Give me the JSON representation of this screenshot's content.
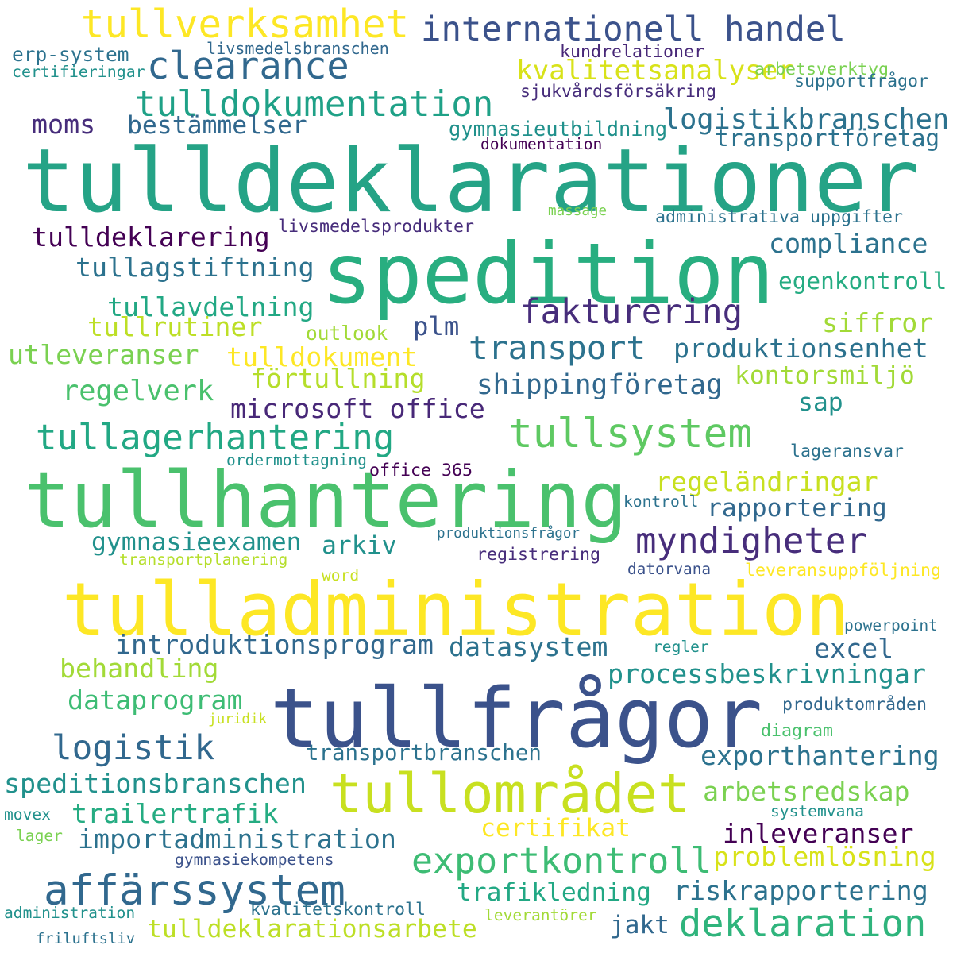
{
  "colors": {
    "dark_purple": "#440154",
    "indigo": "#3b528b",
    "blue": "#31688e",
    "teal": "#21918c",
    "green": "#2a9d70",
    "emerald": "#28ae80",
    "lime_green": "#5ec962",
    "yellow_green": "#b5de2b",
    "yellow": "#fde725"
  },
  "words": [
    {
      "text": "tulldeklarationer",
      "color": "#25a386"
    },
    {
      "text": "spedition",
      "color": "#28ae80"
    },
    {
      "text": "tullhantering",
      "color": "#4ac16d"
    },
    {
      "text": "tulladministration",
      "color": "#fde725"
    },
    {
      "text": "tullfrågor",
      "color": "#3b528b"
    },
    {
      "text": "tullområdet",
      "color": "#c8e020"
    },
    {
      "text": "affärssystem",
      "color": "#31688e"
    },
    {
      "text": "tullsystem",
      "color": "#5ec962"
    },
    {
      "text": "tullverksamhet",
      "color": "#fde725"
    },
    {
      "text": "internationell handel",
      "color": "#3b528b"
    },
    {
      "text": "clearance",
      "color": "#31688e"
    },
    {
      "text": "tulldokumentation",
      "color": "#1fa187"
    },
    {
      "text": "kvalitetsanalyser",
      "color": "#d8e219"
    },
    {
      "text": "logistikbranschen",
      "color": "#2c728e"
    },
    {
      "text": "moms",
      "color": "#472d7b"
    },
    {
      "text": "bestämmelser",
      "color": "#31688e"
    },
    {
      "text": "gymnasieutbildning",
      "color": "#21918c"
    },
    {
      "text": "transportföretag",
      "color": "#2c728e"
    },
    {
      "text": "deklaration",
      "color": "#2fb47c"
    },
    {
      "text": "exportkontroll",
      "color": "#3dbc74"
    },
    {
      "text": "fakturering",
      "color": "#472d7b"
    },
    {
      "text": "tullagerhantering",
      "color": "#22a884"
    },
    {
      "text": "myndigheter",
      "color": "#472d7b"
    },
    {
      "text": "transport",
      "color": "#2c728e"
    },
    {
      "text": "logistik",
      "color": "#31688e"
    },
    {
      "text": "tulldeklarering",
      "color": "#440154"
    },
    {
      "text": "compliance",
      "color": "#2c728e"
    },
    {
      "text": "tullagstiftning",
      "color": "#2c728e"
    },
    {
      "text": "tullavdelning",
      "color": "#22a884"
    },
    {
      "text": "tullrutiner",
      "color": "#bddf26"
    },
    {
      "text": "utleveranser",
      "color": "#7ad151"
    },
    {
      "text": "tulldokument",
      "color": "#fde725"
    },
    {
      "text": "förtullning",
      "color": "#b5de2b"
    },
    {
      "text": "regelverk",
      "color": "#4ac16d"
    },
    {
      "text": "microsoft office",
      "color": "#482878"
    },
    {
      "text": "shippingföretag",
      "color": "#31688e"
    },
    {
      "text": "produktionsenhet",
      "color": "#2c728e"
    },
    {
      "text": "kontorsmiljö",
      "color": "#a2da37"
    },
    {
      "text": "siffror",
      "color": "#a2da37"
    },
    {
      "text": "plm",
      "color": "#3b528b"
    },
    {
      "text": "sap",
      "color": "#21918c"
    },
    {
      "text": "egenkontroll",
      "color": "#25ac82"
    },
    {
      "text": "regeländringar",
      "color": "#c8e020"
    },
    {
      "text": "rapportering",
      "color": "#31688e"
    },
    {
      "text": "gymnasieexamen",
      "color": "#21918c"
    },
    {
      "text": "arkiv",
      "color": "#21918c"
    },
    {
      "text": "introduktionsprogram",
      "color": "#31688e"
    },
    {
      "text": "datasystem",
      "color": "#2c728e"
    },
    {
      "text": "excel",
      "color": "#31688e"
    },
    {
      "text": "processbeskrivningar",
      "color": "#21918c"
    },
    {
      "text": "behandling",
      "color": "#a2da37"
    },
    {
      "text": "dataprogram",
      "color": "#3dbc74"
    },
    {
      "text": "exporthantering",
      "color": "#2c728e"
    },
    {
      "text": "speditionsbranschen",
      "color": "#21918c"
    },
    {
      "text": "arbetsredskap",
      "color": "#7ad151"
    },
    {
      "text": "trailertrafik",
      "color": "#25ac82"
    },
    {
      "text": "certifikat",
      "color": "#fde725"
    },
    {
      "text": "inleveranser",
      "color": "#440154"
    },
    {
      "text": "importadministration",
      "color": "#2c728e"
    },
    {
      "text": "problemlösning",
      "color": "#d8e219"
    },
    {
      "text": "trafikledning",
      "color": "#22a884"
    },
    {
      "text": "riskrapportering",
      "color": "#2c728e"
    },
    {
      "text": "tulldeklarationsarbete",
      "color": "#bddf26"
    },
    {
      "text": "jakt",
      "color": "#31688e"
    },
    {
      "text": "transportbranschen",
      "color": "#2c728e"
    },
    {
      "text": "livsmedelsprodukter",
      "color": "#472d7b"
    },
    {
      "text": "administrativa uppgifter",
      "color": "#2c728e"
    },
    {
      "text": "livsmedelsbranschen",
      "color": "#31688e"
    },
    {
      "text": "kundrelationer",
      "color": "#482878"
    },
    {
      "text": "erp-system",
      "color": "#2c728e"
    },
    {
      "text": "arbetsverktyg",
      "color": "#7ad151"
    },
    {
      "text": "certifieringar",
      "color": "#21918c"
    },
    {
      "text": "supportfrågor",
      "color": "#2c728e"
    },
    {
      "text": "sjukvårdsförsäkring",
      "color": "#472d7b"
    },
    {
      "text": "dokumentation",
      "color": "#440154"
    },
    {
      "text": "massage",
      "color": "#7ad151"
    },
    {
      "text": "outlook",
      "color": "#a2da37"
    },
    {
      "text": "lageransvar",
      "color": "#2c728e"
    },
    {
      "text": "ordermottagning",
      "color": "#21918c"
    },
    {
      "text": "office 365",
      "color": "#440154"
    },
    {
      "text": "kontroll",
      "color": "#2c728e"
    },
    {
      "text": "produktionsfrågor",
      "color": "#2c728e"
    },
    {
      "text": "registrering",
      "color": "#472d7b"
    },
    {
      "text": "transportplanering",
      "color": "#b5de2b"
    },
    {
      "text": "word",
      "color": "#c8e020"
    },
    {
      "text": "datorvana",
      "color": "#3b528b"
    },
    {
      "text": "leveransuppföljning",
      "color": "#fde725"
    },
    {
      "text": "powerpoint",
      "color": "#2c728e"
    },
    {
      "text": "regler",
      "color": "#21918c"
    },
    {
      "text": "produktområden",
      "color": "#31688e"
    },
    {
      "text": "juridik",
      "color": "#c8e020"
    },
    {
      "text": "diagram",
      "color": "#4ac16d"
    },
    {
      "text": "systemvana",
      "color": "#21918c"
    },
    {
      "text": "movex",
      "color": "#21918c"
    },
    {
      "text": "lager",
      "color": "#7ad151"
    },
    {
      "text": "gymnasiekompetens",
      "color": "#3b528b"
    },
    {
      "text": "kvalitetskontroll",
      "color": "#2c728e"
    },
    {
      "text": "administration",
      "color": "#21918c"
    },
    {
      "text": "leverantörer",
      "color": "#a2da37"
    },
    {
      "text": "friluftsliv",
      "color": "#2c728e"
    }
  ]
}
